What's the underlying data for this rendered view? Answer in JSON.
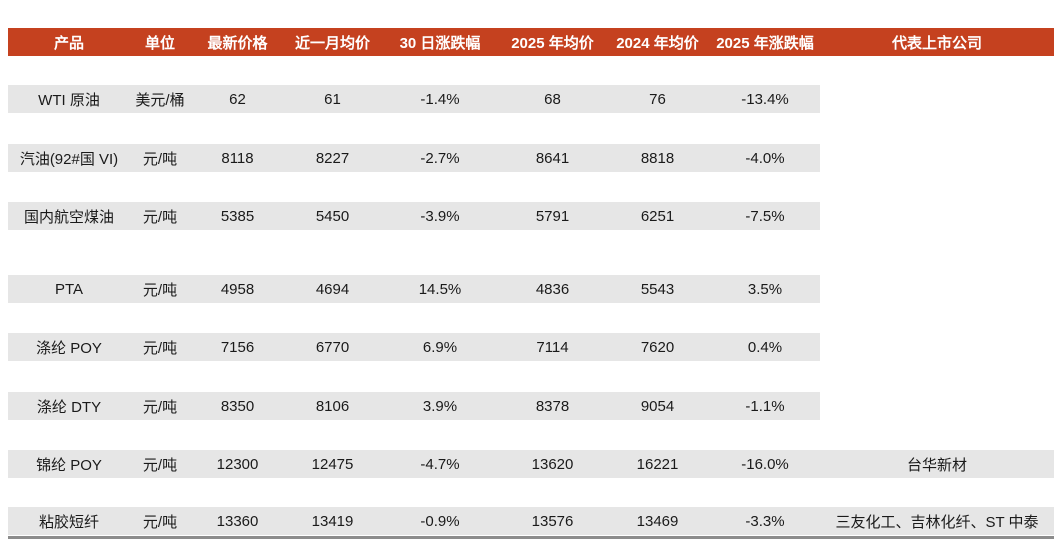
{
  "colors": {
    "page_bg": "#FFFFFF",
    "header_bg": "#C5411F",
    "header_text": "#FFFFFF",
    "row_bg": "#E6E6E6",
    "cell_text": "#1A1A1A",
    "bottom_rule": "#8C8C8C"
  },
  "table": {
    "columns": [
      {
        "key": "product",
        "label": "产品"
      },
      {
        "key": "unit",
        "label": "单位"
      },
      {
        "key": "latest",
        "label": "最新价格"
      },
      {
        "key": "month_avg",
        "label": "近一月均价"
      },
      {
        "key": "chg_30d",
        "label": "30 日涨跌幅"
      },
      {
        "key": "avg_2025",
        "label": "2025 年均价"
      },
      {
        "key": "avg_2024",
        "label": "2024 年均价"
      },
      {
        "key": "chg_2025",
        "label": "2025 年涨跌幅"
      },
      {
        "key": "companies",
        "label": "代表上市公司"
      }
    ],
    "rows": [
      {
        "product": "WTI 原油",
        "unit": "美元/桶",
        "latest": "62",
        "month_avg": "61",
        "chg_30d": "-1.4%",
        "avg_2025": "68",
        "avg_2024": "76",
        "chg_2025": "-13.4%",
        "companies": ""
      },
      {
        "product": "汽油(92#国 VI)",
        "unit": "元/吨",
        "latest": "8118",
        "month_avg": "8227",
        "chg_30d": "-2.7%",
        "avg_2025": "8641",
        "avg_2024": "8818",
        "chg_2025": "-4.0%",
        "companies": ""
      },
      {
        "product": "国内航空煤油",
        "unit": "元/吨",
        "latest": "5385",
        "month_avg": "5450",
        "chg_30d": "-3.9%",
        "avg_2025": "5791",
        "avg_2024": "6251",
        "chg_2025": "-7.5%",
        "companies": ""
      },
      {
        "product": "PTA",
        "unit": "元/吨",
        "latest": "4958",
        "month_avg": "4694",
        "chg_30d": "14.5%",
        "avg_2025": "4836",
        "avg_2024": "5543",
        "chg_2025": "3.5%",
        "companies": ""
      },
      {
        "product": "涤纶 POY",
        "unit": "元/吨",
        "latest": "7156",
        "month_avg": "6770",
        "chg_30d": "6.9%",
        "avg_2025": "7114",
        "avg_2024": "7620",
        "chg_2025": "0.4%",
        "companies": ""
      },
      {
        "product": "涤纶 DTY",
        "unit": "元/吨",
        "latest": "8350",
        "month_avg": "8106",
        "chg_30d": "3.9%",
        "avg_2025": "8378",
        "avg_2024": "9054",
        "chg_2025": "-1.1%",
        "companies": ""
      },
      {
        "product": "锦纶 POY",
        "unit": "元/吨",
        "latest": "12300",
        "month_avg": "12475",
        "chg_30d": "-4.7%",
        "avg_2025": "13620",
        "avg_2024": "16221",
        "chg_2025": "-16.0%",
        "companies": "台华新材"
      },
      {
        "product": "粘胶短纤",
        "unit": "元/吨",
        "latest": "13360",
        "month_avg": "13419",
        "chg_30d": "-0.9%",
        "avg_2025": "13576",
        "avg_2024": "13469",
        "chg_2025": "-3.3%",
        "companies": "三友化工、吉林化纤、ST 中泰"
      }
    ]
  }
}
